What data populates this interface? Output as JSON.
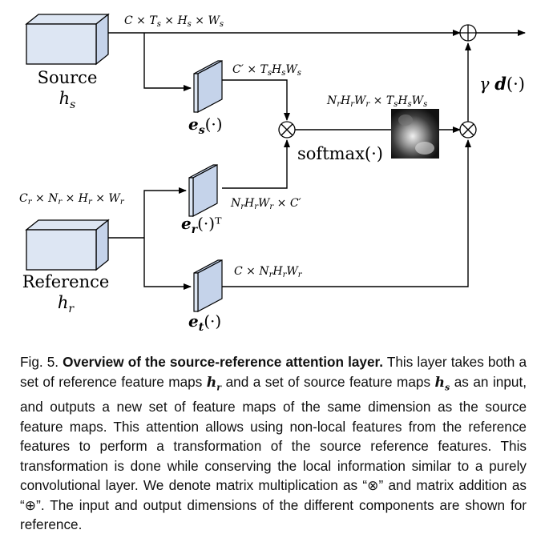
{
  "diagram": {
    "source_label": "Source",
    "source_var": "h_s",
    "reference_label": "Reference",
    "reference_var": "h_r",
    "dim_source_top": "C × T_s × H_s × W_s",
    "dim_es_out": "C' × T_sH_sW_s",
    "dim_ref_in": "C_r × N_r × H_r × W_r",
    "dim_er_out": "N_rH_rW_r × C'",
    "dim_et_out": "C × N_rH_rW_r",
    "dim_attention": "N_rH_rW_r × T_sH_sW_s",
    "softmax_label": "softmax(·)",
    "es_label": "e_s(·)",
    "er_label": "e_r(·)ᵀ",
    "et_label": "e_t(·)",
    "gamma_label": "γ d(·)",
    "mult_symbol": "⊗",
    "add_symbol": "⊕",
    "colors": {
      "block_fill": "#dde6f3",
      "line": "#000000"
    }
  },
  "caption": {
    "fig_label": "Fig. 5.",
    "title": "Overview of the source-reference attention layer.",
    "text_1": "This layer takes both a set of reference feature maps",
    "var_hr": "h_r",
    "text_2": "and a set of source feature maps",
    "var_hs": "h_s",
    "text_3": "as an input, and outputs a new set of feature maps of the same dimension as the source feature maps. This attention allows using non-local features from the reference features to perform a transformation of the source reference features. This transformation is done while conserving the local information similar to a purely convolutional layer. We denote matrix multiplication as “⊗” and matrix addition as “⊕”. The input and output dimensions of the different components are shown for reference."
  }
}
